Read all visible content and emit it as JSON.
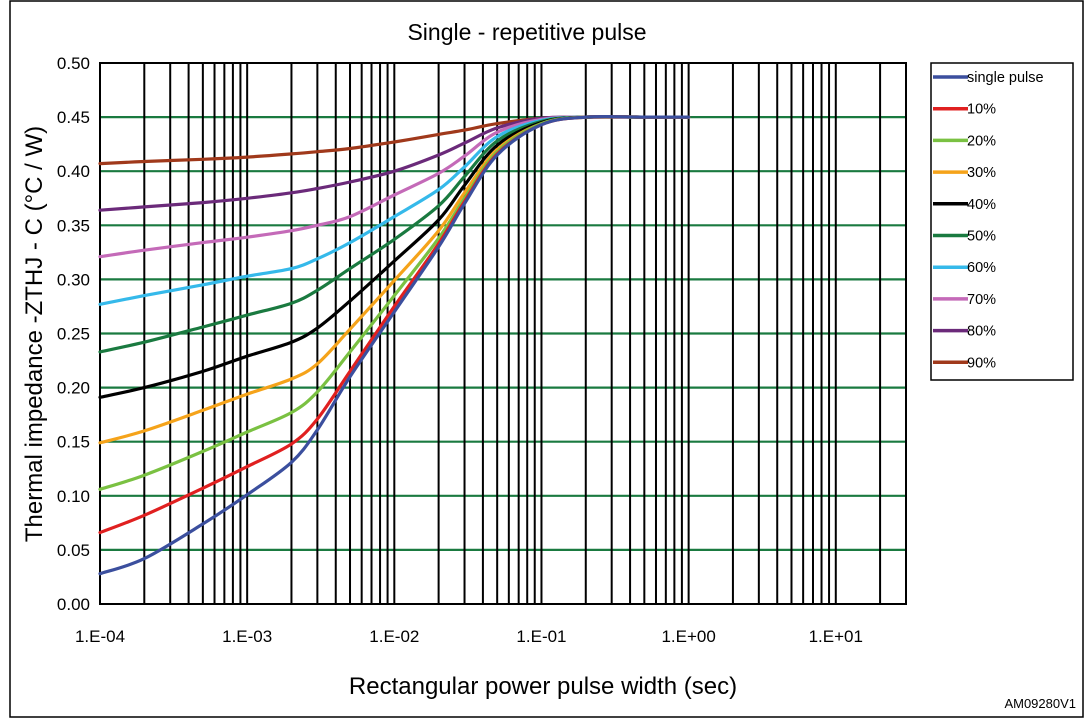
{
  "chart_data": {
    "type": "line",
    "title": "Single - repetitive pulse",
    "xlabel": "Rectangular power pulse width (sec)",
    "ylabel": "Thermal impedance  -ZTHJ - C (°C / W)",
    "x_scale": "log",
    "xlim": [
      0.0001,
      30
    ],
    "ylim": [
      0,
      0.5
    ],
    "x_ticks": [
      0.0001,
      0.001,
      0.01,
      0.1,
      1,
      10
    ],
    "x_tick_labels": [
      "1.E-04",
      "1.E-03",
      "1.E-02",
      "1.E-01",
      "1.E+00",
      "1.E+01"
    ],
    "y_ticks": [
      0,
      0.05,
      0.1,
      0.15,
      0.2,
      0.25,
      0.3,
      0.35,
      0.4,
      0.45,
      0.5
    ],
    "y_tick_labels": [
      "0.00",
      "0.05",
      "0.10",
      "0.15",
      "0.20",
      "0.25",
      "0.30",
      "0.35",
      "0.40",
      "0.45",
      "0.50"
    ],
    "grid": true,
    "legend_position": "right",
    "x": [
      0.0001,
      0.0002,
      0.0005,
      0.001,
      0.002,
      0.003,
      0.005,
      0.01,
      0.02,
      0.03,
      0.05,
      0.1,
      0.2,
      0.5,
      1
    ],
    "series": [
      {
        "name": "single pulse",
        "color": "#3b4f9e",
        "values": [
          0.028,
          0.042,
          0.074,
          0.101,
          0.131,
          0.161,
          0.21,
          0.27,
          0.33,
          0.37,
          0.415,
          0.443,
          0.45,
          0.45,
          0.45
        ]
      },
      {
        "name": "10%",
        "color": "#e02020",
        "values": [
          0.066,
          0.082,
          0.107,
          0.127,
          0.148,
          0.171,
          0.215,
          0.275,
          0.333,
          0.372,
          0.416,
          0.443,
          0.45,
          0.45,
          0.45
        ]
      },
      {
        "name": "20%",
        "color": "#7ac142",
        "values": [
          0.106,
          0.119,
          0.141,
          0.159,
          0.177,
          0.196,
          0.233,
          0.285,
          0.338,
          0.375,
          0.418,
          0.444,
          0.45,
          0.45,
          0.45
        ]
      },
      {
        "name": "30%",
        "color": "#f5a31a",
        "values": [
          0.149,
          0.16,
          0.179,
          0.194,
          0.208,
          0.222,
          0.254,
          0.299,
          0.345,
          0.38,
          0.42,
          0.444,
          0.45,
          0.45,
          0.45
        ]
      },
      {
        "name": "40%",
        "color": "#000000",
        "values": [
          0.191,
          0.2,
          0.215,
          0.229,
          0.242,
          0.255,
          0.28,
          0.317,
          0.355,
          0.387,
          0.424,
          0.445,
          0.45,
          0.45,
          0.45
        ]
      },
      {
        "name": "50%",
        "color": "#1a7a40",
        "values": [
          0.233,
          0.242,
          0.256,
          0.267,
          0.278,
          0.29,
          0.31,
          0.337,
          0.368,
          0.395,
          0.428,
          0.446,
          0.45,
          0.45,
          0.45
        ]
      },
      {
        "name": "60%",
        "color": "#35b9ea",
        "values": [
          0.277,
          0.285,
          0.295,
          0.303,
          0.31,
          0.319,
          0.334,
          0.358,
          0.383,
          0.404,
          0.432,
          0.447,
          0.45,
          0.45,
          0.45
        ]
      },
      {
        "name": "70%",
        "color": "#c46ab8",
        "values": [
          0.321,
          0.327,
          0.334,
          0.339,
          0.345,
          0.35,
          0.358,
          0.378,
          0.398,
          0.414,
          0.436,
          0.448,
          0.45,
          0.45,
          0.45
        ]
      },
      {
        "name": "80%",
        "color": "#6b2a7a",
        "values": [
          0.364,
          0.367,
          0.371,
          0.375,
          0.38,
          0.384,
          0.39,
          0.4,
          0.415,
          0.426,
          0.44,
          0.449,
          0.45,
          0.45,
          0.45
        ]
      },
      {
        "name": "90%",
        "color": "#a0391b",
        "values": [
          0.407,
          0.409,
          0.411,
          0.413,
          0.416,
          0.418,
          0.421,
          0.427,
          0.434,
          0.438,
          0.444,
          0.449,
          0.45,
          0.45,
          0.45
        ]
      }
    ]
  },
  "figure_code": "AM09280V1"
}
